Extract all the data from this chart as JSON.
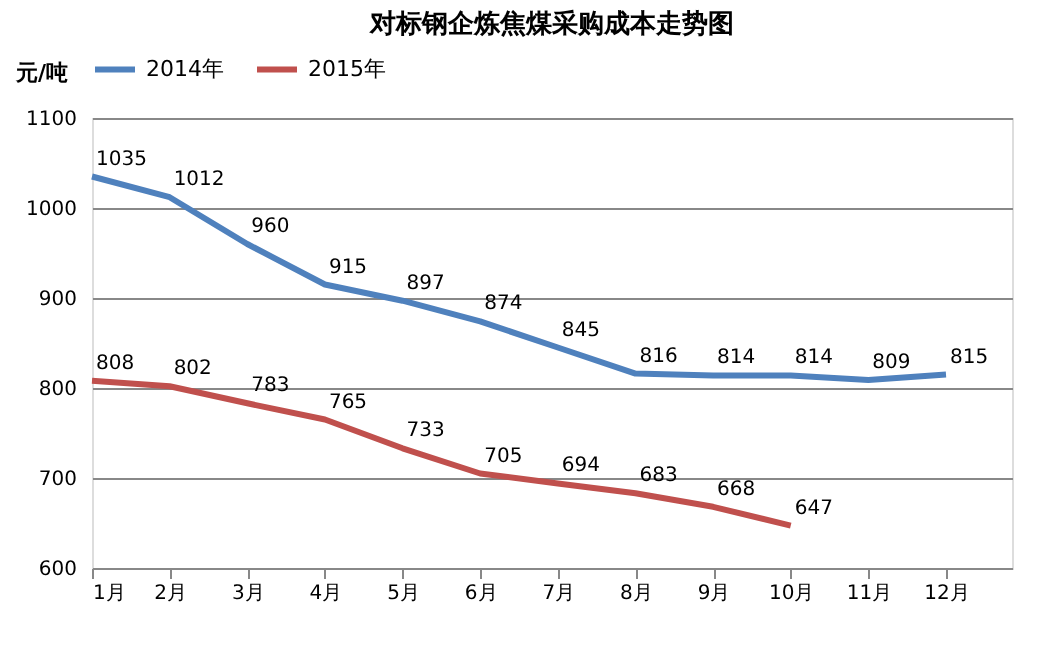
{
  "chart_data": {
    "type": "line",
    "title": "对标钢企炼焦煤采购成本走势图",
    "ylabel": "元/吨",
    "categories": [
      "1月",
      "2月",
      "3月",
      "4月",
      "5月",
      "6月",
      "7月",
      "8月",
      "9月",
      "10月",
      "11月",
      "12月"
    ],
    "series": [
      {
        "name": "2014年",
        "color": "#4f81bd",
        "values": [
          1035,
          1012,
          960,
          915,
          897,
          874,
          845,
          816,
          814,
          814,
          809,
          815
        ]
      },
      {
        "name": "2015年",
        "color": "#c0504d",
        "values": [
          808,
          802,
          783,
          765,
          733,
          705,
          694,
          683,
          668,
          647,
          null,
          null
        ]
      }
    ],
    "ylim": [
      600,
      1100
    ],
    "yticks": [
      600,
      700,
      800,
      900,
      1000,
      1100
    ],
    "grid": "y",
    "legend": "top",
    "data_labels": true,
    "marker": "none",
    "line_style": "solid"
  }
}
